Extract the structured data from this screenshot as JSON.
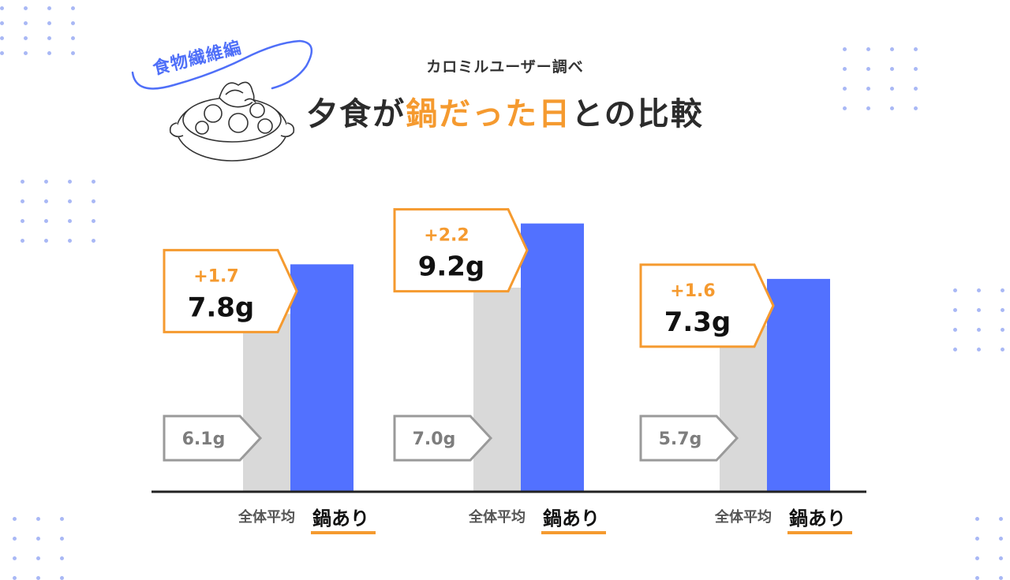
{
  "badge": {
    "text": "食物繊維編",
    "icon": "hotpot-icon"
  },
  "header": {
    "subtitle": "カロミルユーザー調べ",
    "title_prefix": "夕食が",
    "title_highlight": "鍋だった日",
    "title_suffix": "との比較"
  },
  "colors": {
    "accent": "#f59a2f",
    "bar_average": "#d9d9d9",
    "bar_nabe": "#5271ff",
    "label_gray": "#9a9a9a",
    "axis": "#222222"
  },
  "chart_data": {
    "type": "bar",
    "unit": "g",
    "series_labels": [
      "全体平均",
      "鍋あり"
    ],
    "groups": [
      {
        "average": 6.1,
        "nabe": 7.8,
        "average_label": "6.1g",
        "nabe_label": "7.8g",
        "diff_label": "+1.7"
      },
      {
        "average": 7.0,
        "nabe": 9.2,
        "average_label": "7.0g",
        "nabe_label": "9.2g",
        "diff_label": "+2.2"
      },
      {
        "average": 5.7,
        "nabe": 7.3,
        "average_label": "5.7g",
        "nabe_label": "7.3g",
        "diff_label": "+1.6"
      }
    ],
    "legend_avg_label": "全体平均",
    "legend_nabe_label": "鍋あり"
  }
}
